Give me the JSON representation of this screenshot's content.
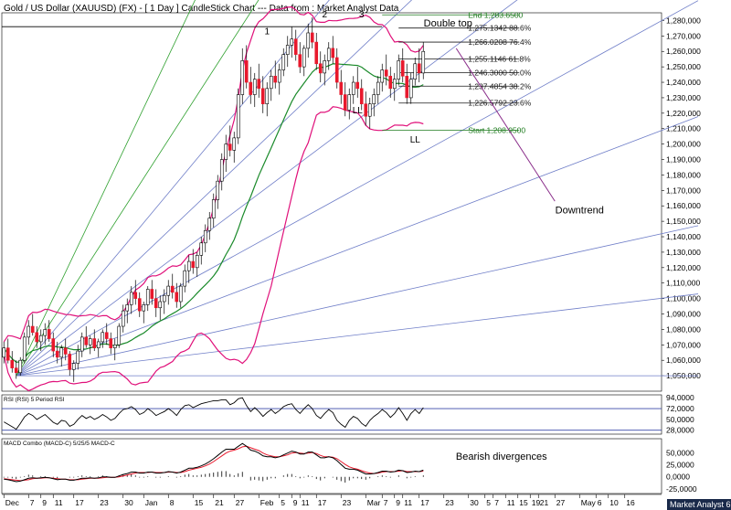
{
  "header": {
    "title": "Gold / US Dollar (XAUUSD) (FX) - [ 1 Day ] CandleStick Chart --- Data from : Market Analyst Data"
  },
  "footer": {
    "brand": "Market Analyst 6"
  },
  "colors": {
    "bull": "#ffffff",
    "bear": "#e8192c",
    "wick": "#000000",
    "bollinger": "#e0107a",
    "ma": "#1a8a2a",
    "fan": "#6f7ec8",
    "fanGreen": "#2ea02e",
    "fib": "#1a1a1a",
    "startEnd": "#1d7a1d",
    "downtrend": "#8a2d8a",
    "rsi": "#000000",
    "macd": "#000000",
    "macdSignal": "#e8192c"
  },
  "chart_data": {
    "type": "candlestick",
    "title": "Gold / US Dollar (XAUUSD) (FX) - [ 1 Day ] CandleStick Chart --- Data from : Market Analyst Data",
    "price_axis": {
      "min": 1040,
      "max": 1285,
      "ticks": [
        "1,280,000",
        "1,270,000",
        "1,260,000",
        "1,250,000",
        "1,240,000",
        "1,230,000",
        "1,220,000",
        "1,210,000",
        "1,200,000",
        "1,190,000",
        "1,180,000",
        "1,170,000",
        "1,160,000",
        "1,150,000",
        "1,140,000",
        "1,130,000",
        "1,120,000",
        "1,110,000",
        "1,100,000",
        "1,090,000",
        "1,080,000",
        "1,070,000",
        "1,060,000",
        "1,050,000"
      ],
      "tick_values": [
        1280,
        1270,
        1260,
        1250,
        1240,
        1230,
        1220,
        1210,
        1200,
        1190,
        1180,
        1170,
        1160,
        1150,
        1140,
        1130,
        1120,
        1110,
        1100,
        1090,
        1080,
        1070,
        1060,
        1050
      ]
    },
    "x_axis": {
      "labels": [
        "Dec",
        "7",
        "9",
        "11",
        "17",
        "23",
        "30",
        "Jan",
        "8",
        "15",
        "21",
        "27",
        "Feb",
        "5",
        "9",
        "11",
        "17",
        "23",
        "Mar",
        "7",
        "9",
        "11",
        "17",
        "23",
        "30",
        "5",
        "7",
        "11",
        "15",
        "19",
        "21",
        "27",
        "May",
        "6",
        "10",
        "16"
      ],
      "positions": [
        0,
        6,
        9,
        12,
        17,
        23,
        29,
        34,
        40,
        46,
        51,
        56,
        62,
        67,
        70,
        72,
        76,
        82,
        88,
        92,
        95,
        97,
        101,
        107,
        113,
        117,
        119,
        122,
        125,
        128,
        130,
        134,
        140,
        144,
        147,
        151
      ]
    },
    "candles_ohlc": [
      [
        1062,
        1072,
        1058,
        1068
      ],
      [
        1068,
        1074,
        1058,
        1060
      ],
      [
        1060,
        1066,
        1052,
        1055
      ],
      [
        1055,
        1060,
        1048,
        1052
      ],
      [
        1052,
        1062,
        1050,
        1060
      ],
      [
        1060,
        1078,
        1058,
        1075
      ],
      [
        1075,
        1086,
        1070,
        1082
      ],
      [
        1082,
        1090,
        1076,
        1078
      ],
      [
        1078,
        1082,
        1068,
        1072
      ],
      [
        1072,
        1080,
        1066,
        1076
      ],
      [
        1076,
        1084,
        1070,
        1080
      ],
      [
        1080,
        1086,
        1072,
        1074
      ],
      [
        1074,
        1078,
        1062,
        1066
      ],
      [
        1066,
        1072,
        1058,
        1062
      ],
      [
        1062,
        1070,
        1056,
        1068
      ],
      [
        1068,
        1074,
        1060,
        1064
      ],
      [
        1064,
        1066,
        1050,
        1054
      ],
      [
        1054,
        1060,
        1046,
        1058
      ],
      [
        1058,
        1070,
        1054,
        1066
      ],
      [
        1066,
        1078,
        1062,
        1075
      ],
      [
        1075,
        1082,
        1068,
        1070
      ],
      [
        1070,
        1076,
        1064,
        1074
      ],
      [
        1074,
        1080,
        1066,
        1068
      ],
      [
        1068,
        1074,
        1062,
        1072
      ],
      [
        1072,
        1080,
        1068,
        1078
      ],
      [
        1078,
        1084,
        1070,
        1074
      ],
      [
        1074,
        1078,
        1064,
        1068
      ],
      [
        1068,
        1074,
        1060,
        1070
      ],
      [
        1070,
        1084,
        1068,
        1082
      ],
      [
        1082,
        1096,
        1078,
        1092
      ],
      [
        1092,
        1100,
        1084,
        1096
      ],
      [
        1096,
        1108,
        1090,
        1104
      ],
      [
        1104,
        1112,
        1096,
        1100
      ],
      [
        1100,
        1104,
        1088,
        1092
      ],
      [
        1092,
        1098,
        1084,
        1096
      ],
      [
        1096,
        1108,
        1092,
        1106
      ],
      [
        1106,
        1112,
        1096,
        1100
      ],
      [
        1100,
        1106,
        1088,
        1094
      ],
      [
        1094,
        1102,
        1086,
        1098
      ],
      [
        1098,
        1106,
        1090,
        1102
      ],
      [
        1102,
        1112,
        1096,
        1108
      ],
      [
        1108,
        1116,
        1100,
        1104
      ],
      [
        1104,
        1110,
        1094,
        1098
      ],
      [
        1098,
        1110,
        1094,
        1108
      ],
      [
        1108,
        1122,
        1104,
        1118
      ],
      [
        1118,
        1128,
        1110,
        1124
      ],
      [
        1124,
        1132,
        1116,
        1120
      ],
      [
        1120,
        1130,
        1114,
        1128
      ],
      [
        1128,
        1140,
        1122,
        1136
      ],
      [
        1136,
        1148,
        1130,
        1144
      ],
      [
        1144,
        1156,
        1138,
        1152
      ],
      [
        1152,
        1168,
        1146,
        1164
      ],
      [
        1164,
        1180,
        1158,
        1176
      ],
      [
        1176,
        1194,
        1170,
        1190
      ],
      [
        1190,
        1206,
        1182,
        1200
      ],
      [
        1200,
        1212,
        1192,
        1196
      ],
      [
        1196,
        1208,
        1188,
        1204
      ],
      [
        1204,
        1236,
        1200,
        1232
      ],
      [
        1232,
        1262,
        1226,
        1254
      ],
      [
        1254,
        1264,
        1236,
        1240
      ],
      [
        1240,
        1250,
        1226,
        1232
      ],
      [
        1232,
        1246,
        1224,
        1242
      ],
      [
        1242,
        1252,
        1230,
        1236
      ],
      [
        1236,
        1244,
        1220,
        1226
      ],
      [
        1226,
        1240,
        1218,
        1236
      ],
      [
        1236,
        1248,
        1228,
        1244
      ],
      [
        1244,
        1254,
        1236,
        1240
      ],
      [
        1240,
        1252,
        1232,
        1248
      ],
      [
        1248,
        1262,
        1244,
        1258
      ],
      [
        1258,
        1270,
        1250,
        1264
      ],
      [
        1264,
        1276,
        1256,
        1268
      ],
      [
        1268,
        1274,
        1254,
        1258
      ],
      [
        1258,
        1266,
        1246,
        1250
      ],
      [
        1250,
        1264,
        1244,
        1262
      ],
      [
        1262,
        1278,
        1256,
        1272
      ],
      [
        1272,
        1282,
        1262,
        1266
      ],
      [
        1266,
        1272,
        1248,
        1252
      ],
      [
        1252,
        1260,
        1240,
        1246
      ],
      [
        1246,
        1258,
        1238,
        1254
      ],
      [
        1254,
        1266,
        1248,
        1262
      ],
      [
        1262,
        1270,
        1252,
        1256
      ],
      [
        1256,
        1262,
        1236,
        1240
      ],
      [
        1240,
        1248,
        1226,
        1232
      ],
      [
        1232,
        1240,
        1218,
        1222
      ],
      [
        1222,
        1236,
        1216,
        1232
      ],
      [
        1232,
        1244,
        1226,
        1240
      ],
      [
        1240,
        1250,
        1230,
        1236
      ],
      [
        1236,
        1242,
        1222,
        1226
      ],
      [
        1226,
        1234,
        1212,
        1218
      ],
      [
        1218,
        1230,
        1210,
        1226
      ],
      [
        1226,
        1236,
        1218,
        1232
      ],
      [
        1232,
        1244,
        1226,
        1240
      ],
      [
        1240,
        1252,
        1234,
        1248
      ],
      [
        1248,
        1258,
        1238,
        1244
      ],
      [
        1244,
        1250,
        1230,
        1236
      ],
      [
        1236,
        1246,
        1228,
        1242
      ],
      [
        1242,
        1258,
        1238,
        1254
      ],
      [
        1254,
        1262,
        1240,
        1244
      ],
      [
        1244,
        1252,
        1226,
        1230
      ],
      [
        1230,
        1246,
        1226,
        1242
      ],
      [
        1242,
        1256,
        1238,
        1252
      ],
      [
        1252,
        1262,
        1240,
        1246
      ],
      [
        1246,
        1266,
        1242,
        1260
      ]
    ],
    "fib_levels": [
      {
        "label": "End 1,283.6500",
        "value": 1283.65
      },
      {
        "label": "1,275.1342 88.6%",
        "value": 1275.13
      },
      {
        "label": "1,266.0208 76.4%",
        "value": 1266.02
      },
      {
        "label": "1,255.1146 61.8%",
        "value": 1255.11
      },
      {
        "label": "1,246.3000 50.0%",
        "value": 1246.3
      },
      {
        "label": "1,237.4854 38.2%",
        "value": 1237.49
      },
      {
        "label": "1,226.5792 23.6%",
        "value": 1226.58
      },
      {
        "label": "Start 1,208.9500",
        "value": 1208.95
      }
    ],
    "annotations": [
      {
        "text": "1",
        "x": 64,
        "y": 1271
      },
      {
        "text": "2",
        "x": 78,
        "y": 1282
      },
      {
        "text": "3",
        "x": 87,
        "y": 1282
      },
      {
        "text": "Double top",
        "x": 108,
        "y": 1276
      },
      {
        "text": "LL",
        "x": 86,
        "y": 1220
      },
      {
        "text": "LL",
        "x": 100,
        "y": 1201
      },
      {
        "text": "Downtrend",
        "x": 140,
        "y": 1155
      }
    ],
    "rsi": {
      "title": "RSI (RSI) 5 Period RSI",
      "ticks": [
        "94,0000",
        "72,0000",
        "50,0000",
        "28,0000"
      ],
      "tick_values": [
        94,
        72,
        50,
        28
      ],
      "min": 20,
      "max": 100,
      "overbought": 72,
      "oversold": 28,
      "values": [
        45,
        40,
        35,
        30,
        42,
        55,
        62,
        58,
        50,
        55,
        60,
        52,
        44,
        40,
        48,
        46,
        36,
        40,
        50,
        58,
        52,
        56,
        50,
        54,
        60,
        55,
        48,
        52,
        62,
        70,
        72,
        76,
        70,
        60,
        64,
        72,
        66,
        58,
        62,
        66,
        72,
        66,
        58,
        70,
        78,
        80,
        74,
        78,
        82,
        84,
        86,
        88,
        88,
        90,
        90,
        80,
        84,
        92,
        94,
        78,
        66,
        74,
        66,
        56,
        64,
        70,
        62,
        68,
        76,
        80,
        82,
        70,
        62,
        72,
        80,
        72,
        58,
        52,
        62,
        70,
        64,
        48,
        40,
        34,
        48,
        56,
        52,
        42,
        36,
        48,
        56,
        62,
        70,
        64,
        54,
        62,
        74,
        62,
        48,
        62,
        70,
        62,
        74
      ]
    },
    "macd": {
      "title": "MACD Combo (MACD-C) 5/25/5 MACD-C",
      "ticks": [
        "50,0000",
        "25,0000",
        "0,0000",
        "-25,0000"
      ],
      "tick_values": [
        50,
        25,
        0,
        -25
      ],
      "min": -35,
      "max": 80,
      "annotation": "Bearish divergences",
      "macd_line": [
        -5,
        -6,
        -8,
        -10,
        -9,
        -6,
        -3,
        -2,
        -3,
        -2,
        -1,
        -2,
        -4,
        -6,
        -5,
        -5,
        -7,
        -7,
        -5,
        -3,
        -3,
        -2,
        -3,
        -2,
        0,
        0,
        -1,
        -1,
        2,
        5,
        7,
        10,
        10,
        8,
        8,
        10,
        10,
        8,
        8,
        9,
        11,
        10,
        8,
        10,
        14,
        18,
        18,
        20,
        23,
        27,
        32,
        38,
        45,
        52,
        58,
        58,
        58,
        64,
        70,
        64,
        56,
        54,
        50,
        44,
        42,
        42,
        40,
        42,
        46,
        50,
        54,
        52,
        48,
        48,
        52,
        52,
        46,
        40,
        40,
        42,
        40,
        34,
        26,
        18,
        16,
        16,
        14,
        10,
        6,
        6,
        7,
        9,
        12,
        12,
        10,
        11,
        14,
        13,
        9,
        10,
        12,
        11,
        14
      ],
      "signal_line": [
        -4,
        -5,
        -6,
        -7,
        -8,
        -7,
        -6,
        -4,
        -3,
        -3,
        -2,
        -2,
        -3,
        -4,
        -5,
        -5,
        -6,
        -6,
        -6,
        -5,
        -4,
        -3,
        -3,
        -3,
        -2,
        -1,
        -1,
        -1,
        0,
        2,
        4,
        6,
        8,
        9,
        9,
        9,
        10,
        9,
        9,
        9,
        10,
        10,
        9,
        9,
        11,
        14,
        16,
        18,
        20,
        23,
        27,
        32,
        38,
        44,
        50,
        54,
        56,
        59,
        63,
        64,
        61,
        58,
        55,
        50,
        46,
        44,
        42,
        42,
        44,
        46,
        50,
        51,
        50,
        49,
        50,
        51,
        49,
        45,
        42,
        42,
        41,
        38,
        32,
        26,
        21,
        18,
        16,
        13,
        10,
        8,
        7,
        8,
        10,
        11,
        11,
        11,
        12,
        13,
        11,
        11,
        11,
        11,
        12
      ],
      "histogram": [
        -1,
        -1,
        -2,
        -3,
        -1,
        1,
        3,
        2,
        0,
        1,
        1,
        0,
        -1,
        -2,
        0,
        0,
        -1,
        -1,
        1,
        2,
        1,
        1,
        0,
        1,
        2,
        1,
        0,
        0,
        2,
        3,
        3,
        4,
        2,
        -1,
        -1,
        1,
        0,
        -1,
        -1,
        0,
        1,
        0,
        -1,
        1,
        3,
        4,
        2,
        2,
        3,
        4,
        5,
        6,
        7,
        8,
        8,
        4,
        2,
        5,
        7,
        0,
        -5,
        -4,
        -5,
        -6,
        -4,
        -2,
        -2,
        0,
        2,
        4,
        4,
        1,
        -2,
        -1,
        2,
        1,
        -3,
        -5,
        -2,
        0,
        -1,
        -4,
        -6,
        -8,
        -5,
        -2,
        -2,
        -3,
        -4,
        -2,
        0,
        1,
        2,
        1,
        -1,
        0,
        2,
        0,
        -2,
        -1,
        1,
        0,
        2
      ]
    }
  }
}
